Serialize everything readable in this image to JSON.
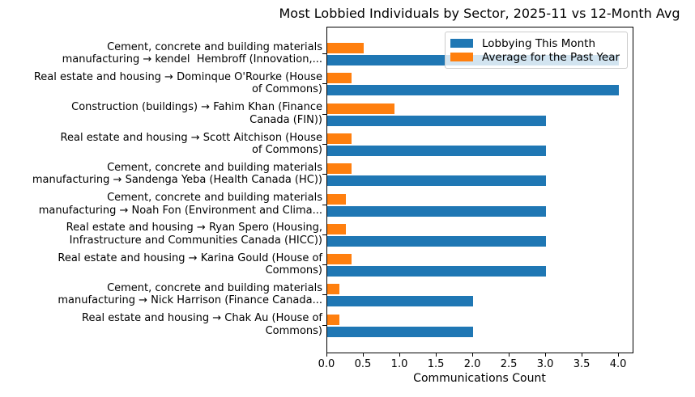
{
  "chart_data": {
    "type": "bar",
    "orientation": "horizontal",
    "title": "Most Lobbied Individuals by Sector, 2025-11 vs 12-Month Avg",
    "xlabel": "Communications Count",
    "ylabel": "",
    "xlim": [
      0,
      4.21
    ],
    "xtick_labels": [
      "0.0",
      "0.5",
      "1.0",
      "1.5",
      "2.0",
      "2.5",
      "3.0",
      "3.5",
      "4.0"
    ],
    "grid": false,
    "legend_position": "upper right",
    "categories": [
      "Cement, concrete and building materials\nmanufacturing → kendel  Hembroff (Innovation,...",
      "Real estate and housing → Dominque O'Rourke (House\nof Commons)",
      "Construction (buildings) → Fahim Khan (Finance\nCanada (FIN))",
      "Real estate and housing → Scott Aitchison (House\nof Commons)",
      "Cement, concrete and building materials\nmanufacturing → Sandenga Yeba (Health Canada (HC))",
      "Cement, concrete and building materials\nmanufacturing → Noah Fon (Environment and Clima...",
      "Real estate and housing → Ryan Spero (Housing,\nInfrastructure and Communities Canada (HICC))",
      "Real estate and housing → Karina Gould (House of\nCommons)",
      "Cement, concrete and building materials\nmanufacturing → Nick Harrison (Finance Canada...",
      "Real estate and housing → Chak Au (House of\nCommons)"
    ],
    "series": [
      {
        "name": "Lobbying This Month",
        "color": "#1f77b4",
        "values": [
          4,
          4,
          3,
          3,
          3,
          3,
          3,
          3,
          2,
          2
        ]
      },
      {
        "name": "Average for the Past Year",
        "color": "#ff7f0e",
        "values": [
          0.5,
          0.33,
          0.92,
          0.33,
          0.33,
          0.25,
          0.25,
          0.33,
          0.17,
          0.17
        ]
      }
    ]
  }
}
